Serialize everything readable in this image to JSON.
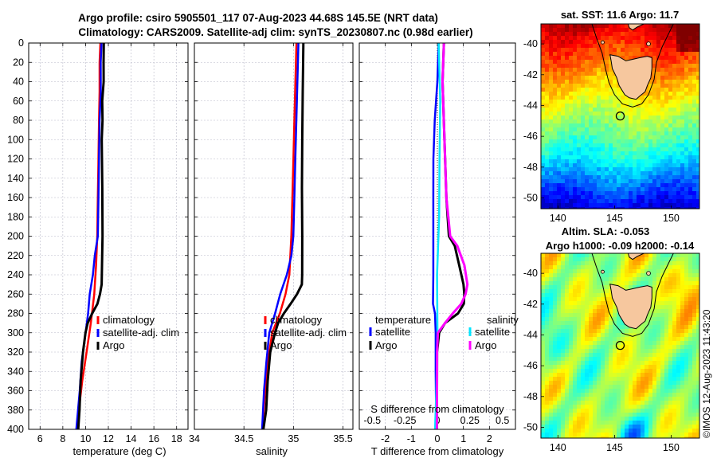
{
  "header": {
    "title_line1": "Argo profile: csiro 5905501_117 07-Aug-2023 44.68S 145.5E (NRT data)",
    "title_line2": "Climatology: CARS2009. Satellite-adj clim: synTS_20230807.nc (0.98d earlier)"
  },
  "watermark": "©IMOS 12-Aug-2023 11:43:20",
  "colors": {
    "climatology": "#ff0000",
    "satellite": "#0000ff",
    "argo": "#000000",
    "salinity_satellite": "#00e5ff",
    "salinity_argo": "#ff00ff",
    "grid": "#b8b8c8",
    "land": "#f6c79e"
  },
  "chart_data": [
    {
      "id": "temperature",
      "type": "line",
      "xlabel": "temperature (deg C)",
      "ylabel": "",
      "xlim": [
        5,
        19
      ],
      "ylim": [
        400,
        0
      ],
      "x_ticks": [
        6,
        8,
        10,
        12,
        14,
        16,
        18
      ],
      "x_tick_labels": [
        "6",
        "8",
        "10",
        "12",
        "14",
        "16",
        "18"
      ],
      "y_ticks": [
        0,
        20,
        40,
        60,
        80,
        100,
        120,
        140,
        160,
        180,
        200,
        220,
        240,
        260,
        280,
        300,
        320,
        340,
        360,
        380,
        400
      ],
      "y_tick_labels": [
        "0",
        "20",
        "40",
        "60",
        "80",
        "100",
        "120",
        "140",
        "160",
        "180",
        "200",
        "220",
        "240",
        "260",
        "280",
        "300",
        "320",
        "340",
        "360",
        "380",
        "400"
      ],
      "grid": true,
      "legend": [
        "climatology",
        "satellite-adj. clim",
        "Argo"
      ],
      "series": [
        {
          "name": "climatology",
          "color": "#ff0000",
          "depth": [
            0,
            20,
            50,
            80,
            120,
            160,
            200,
            230,
            260,
            290,
            320,
            350,
            380,
            400
          ],
          "values": [
            11.3,
            11.25,
            11.2,
            11.15,
            11.1,
            11.05,
            11.0,
            10.95,
            10.8,
            10.45,
            10.05,
            9.7,
            9.45,
            9.3
          ]
        },
        {
          "name": "satellite-adj. clim",
          "color": "#0000ff",
          "depth": [
            0,
            20,
            50,
            80,
            120,
            160,
            200,
            220,
            240,
            260,
            280,
            300,
            330,
            360,
            400
          ],
          "values": [
            11.4,
            11.35,
            11.3,
            11.2,
            11.15,
            11.1,
            11.05,
            10.85,
            10.6,
            10.4,
            10.2,
            10.0,
            9.7,
            9.5,
            9.2
          ]
        },
        {
          "name": "Argo",
          "color": "#000000",
          "depth": [
            0,
            20,
            40,
            60,
            80,
            100,
            150,
            200,
            250,
            260,
            270,
            280,
            290,
            300,
            320,
            350,
            380,
            400
          ],
          "values": [
            11.6,
            11.6,
            11.55,
            11.5,
            11.45,
            11.45,
            11.45,
            11.45,
            11.4,
            11.3,
            11.0,
            10.6,
            10.2,
            9.95,
            9.8,
            9.6,
            9.45,
            9.35
          ]
        }
      ]
    },
    {
      "id": "salinity",
      "type": "line",
      "xlabel": "salinity",
      "ylabel": "",
      "xlim": [
        34.0,
        35.6
      ],
      "ylim": [
        400,
        0
      ],
      "x_ticks": [
        34.0,
        34.5,
        35.0,
        35.5
      ],
      "x_tick_labels": [
        "34",
        "34.5",
        "35",
        "35.5"
      ],
      "grid": true,
      "legend": [
        "climatology",
        "satellite-adj. clim",
        "Argo"
      ],
      "series": [
        {
          "name": "climatology",
          "color": "#ff0000",
          "depth": [
            0,
            40,
            80,
            120,
            160,
            200,
            240,
            260,
            280,
            300,
            330,
            360,
            400
          ],
          "values": [
            35.03,
            35.02,
            35.01,
            35.0,
            34.99,
            34.98,
            34.96,
            34.92,
            34.86,
            34.79,
            34.74,
            34.71,
            34.68
          ]
        },
        {
          "name": "satellite-adj. clim",
          "color": "#0000ff",
          "depth": [
            0,
            40,
            80,
            120,
            160,
            200,
            220,
            240,
            260,
            280,
            300,
            330,
            360,
            400
          ],
          "values": [
            35.05,
            35.04,
            35.03,
            35.02,
            35.01,
            35.0,
            34.98,
            34.93,
            34.87,
            34.81,
            34.76,
            34.73,
            34.7,
            34.68
          ]
        },
        {
          "name": "Argo",
          "color": "#000000",
          "depth": [
            0,
            20,
            50,
            100,
            150,
            200,
            240,
            250,
            260,
            270,
            280,
            290,
            300,
            320,
            350,
            380,
            400
          ],
          "values": [
            35.1,
            35.1,
            35.09,
            35.09,
            35.09,
            35.09,
            35.09,
            35.08,
            35.04,
            34.97,
            34.9,
            34.85,
            34.81,
            34.77,
            34.74,
            34.72,
            34.7
          ]
        }
      ]
    },
    {
      "id": "difference",
      "type": "line",
      "xlabel": "T difference from climatology",
      "x2label": "S difference from climatology",
      "ylabel": "",
      "xlim": [
        -3,
        3
      ],
      "ylim": [
        400,
        0
      ],
      "x_ticks": [
        -2,
        -1,
        0,
        1,
        2
      ],
      "x_tick_labels": [
        "-2",
        "-1",
        "0",
        "1",
        "2"
      ],
      "x2_ticks": [
        -0.5,
        -0.25,
        0,
        0.25,
        0.5
      ],
      "x2_tick_labels": [
        "-0.5",
        "-0.25",
        "0",
        "0.25",
        "0.5"
      ],
      "grid": true,
      "legend_temperature_title": "temperature",
      "legend_salinity_title": "salinity",
      "legend_temperature": [
        "satellite",
        "Argo"
      ],
      "legend_salinity": [
        "satellite",
        "Argo"
      ],
      "series": [
        {
          "name": "temperature satellite",
          "color": "#0000ff",
          "depth": [
            0,
            40,
            80,
            120,
            160,
            200,
            240,
            270,
            280,
            300,
            340,
            400
          ],
          "values": [
            0.05,
            0.0,
            -0.1,
            -0.15,
            -0.15,
            -0.15,
            -0.15,
            -0.15,
            -0.1,
            -0.05,
            -0.05,
            -0.05
          ]
        },
        {
          "name": "temperature Argo",
          "color": "#000000",
          "depth": [
            0,
            40,
            80,
            120,
            160,
            200,
            210,
            230,
            250,
            260,
            270,
            280,
            290,
            300,
            320,
            400
          ],
          "values": [
            0.25,
            0.2,
            0.25,
            0.3,
            0.35,
            0.45,
            0.65,
            0.85,
            1.0,
            1.05,
            1.0,
            0.8,
            0.3,
            0.05,
            0.0,
            0.0
          ]
        },
        {
          "name": "salinity satellite",
          "color": "#00e5ff",
          "depth": [
            0,
            60,
            120,
            180,
            240,
            300,
            360,
            400
          ],
          "values": [
            0.01,
            0.02,
            0.02,
            0.01,
            0.0,
            0.0,
            -0.01,
            -0.02
          ]
        },
        {
          "name": "salinity Argo",
          "color": "#ff00ff",
          "depth": [
            0,
            40,
            80,
            120,
            160,
            200,
            210,
            230,
            250,
            260,
            270,
            280,
            290,
            300,
            320,
            400
          ],
          "values": [
            0.05,
            0.04,
            0.05,
            0.06,
            0.07,
            0.1,
            0.15,
            0.21,
            0.23,
            0.22,
            0.18,
            0.12,
            0.06,
            0.0,
            0.0,
            0.0
          ]
        }
      ]
    },
    {
      "id": "sst-map",
      "type": "heatmap",
      "title": "sat. SST: 11.6 Argo: 11.7",
      "xlim": [
        138.5,
        152.5
      ],
      "ylim": [
        -50.7,
        -38.7
      ],
      "x_ticks": [
        140,
        145,
        150
      ],
      "x_tick_labels": [
        "140",
        "145",
        "150"
      ],
      "y_ticks": [
        -40,
        -42,
        -44,
        -46,
        -48,
        -50
      ],
      "y_tick_labels": [
        "-40",
        "-42",
        "-44",
        "-46",
        "-48",
        "-50"
      ],
      "argo_position": [
        145.5,
        -44.68
      ]
    },
    {
      "id": "sla-map",
      "type": "heatmap",
      "title_line1": "Altim. SLA: -0.053",
      "title_line2": "Argo h1000: -0.09 h2000: -0.14",
      "xlim": [
        138.5,
        152.5
      ],
      "ylim": [
        -50.7,
        -38.7
      ],
      "x_ticks": [
        140,
        145,
        150
      ],
      "x_tick_labels": [
        "140",
        "145",
        "150"
      ],
      "y_ticks": [
        -40,
        -42,
        -44,
        -46,
        -48,
        -50
      ],
      "y_tick_labels": [
        "-40",
        "-42",
        "-44",
        "-46",
        "-48",
        "-50"
      ],
      "argo_position": [
        145.5,
        -44.68
      ]
    }
  ]
}
